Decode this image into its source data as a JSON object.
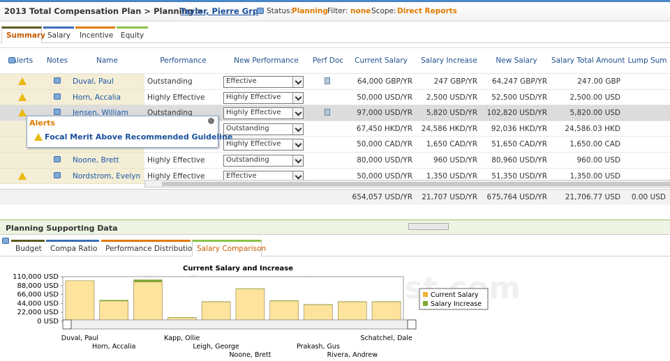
{
  "header": {
    "breadcrumb": "2013 Total Compensation Plan > Planning >",
    "employee": "Taylor, Pierre Grp",
    "status_label": "Status:",
    "status": "Planning",
    "filter_label": "Filter:",
    "filter": "none",
    "scope_label": "Scope:",
    "scope": "Direct Reports"
  },
  "tabs": [
    "Summary",
    "Salary",
    "Incentive",
    "Equity"
  ],
  "active_tab": 0,
  "table": {
    "columns": [
      "Alerts",
      "Notes",
      "Name",
      "Performance",
      "New Performance",
      "Perf Doc",
      "Current Salary",
      "Salary Increase",
      "New Salary",
      "Salary Total Amount",
      "Lump Sum"
    ],
    "rows": [
      {
        "alert": true,
        "note": true,
        "doc": true,
        "name": "Duval, Paul",
        "performance": "Outstanding",
        "new_performance": "Effective",
        "current_salary": "64,000  GBP/YR",
        "salary_increase": "247  GBP/YR",
        "new_salary": "64,247  GBP/YR",
        "total": "247.00  GBP"
      },
      {
        "alert": true,
        "note": true,
        "doc": false,
        "name": "Horn, Accalia",
        "performance": "Highly Effective",
        "new_performance": "Highly Effective",
        "current_salary": "50,000  USD/YR",
        "salary_increase": "2,500  USD/YR",
        "new_salary": "52,500  USD/YR",
        "total": "2,500.00  USD"
      },
      {
        "alert": true,
        "note": true,
        "doc": true,
        "selected": true,
        "name": "Jensen, William",
        "performance": "Outstanding",
        "new_performance": "Highly Effective",
        "current_salary": "97,000  USD/YR",
        "salary_increase": "5,820  USD/YR",
        "new_salary": "102,820  USD/YR",
        "total": "5,820.00  USD"
      },
      {
        "alert": false,
        "note": false,
        "doc": false,
        "new_performance": "Outstanding",
        "current_salary": "67,450  HKD/YR",
        "salary_increase": "24,586  HKD/YR",
        "new_salary": "92,036  HKD/YR",
        "total": "24,586.03  HKD"
      },
      {
        "alert": false,
        "note": false,
        "doc": false,
        "new_performance": "Highly Effective",
        "current_salary": "50,000  CAD/YR",
        "salary_increase": "1,650  CAD/YR",
        "new_salary": "51,650  CAD/YR",
        "total": "1,650.00  CAD"
      },
      {
        "alert": false,
        "note": true,
        "doc": false,
        "name": "Noone, Brett",
        "performance": "Highly Effective",
        "new_performance": "Outstanding",
        "current_salary": "80,000  USD/YR",
        "salary_increase": "960  USD/YR",
        "new_salary": "80,960  USD/YR",
        "total": "960.00  USD"
      },
      {
        "alert": true,
        "note": true,
        "doc": false,
        "name": "Nordstrom, Evelyn",
        "performance": "Highly Effective",
        "new_performance": "Effective",
        "current_salary": "50,000  USD/YR",
        "salary_increase": "1,350  USD/YR",
        "new_salary": "51,350  USD/YR",
        "total": "1,350.00  USD"
      }
    ],
    "totals": {
      "current_salary": "654,057  USD/YR",
      "salary_increase": "21,707  USD/YR",
      "new_salary": "675,764  USD/YR",
      "total": "21,706.77  USD",
      "lump_sum": "0.00  USD"
    }
  },
  "popup": {
    "title": "Alerts",
    "message": "Focal Merit Above Recommended Guideline"
  },
  "support": {
    "title": "Planning Supporting Data",
    "tabs": [
      "Budget",
      "Compa Ratio",
      "Performance Distribution",
      "Salary Comparison"
    ],
    "active_tab": 3
  },
  "watermark": "SoftwareSuggest.com",
  "chart_data": {
    "type": "bar",
    "stacked": true,
    "title": "Current Salary and Increase",
    "categories": [
      "Duval, Paul",
      "Horn, Accalia",
      null,
      "Kapp, Ollie",
      "Leigh, George",
      "Noone, Brett",
      null,
      "Prakash, Gus",
      "Rivera, Andrew",
      "Schatchel, Dale"
    ],
    "series": [
      {
        "name": "Current Salary",
        "color": "#fde39b",
        "legend_color": "#f2b233",
        "values": [
          100000,
          50000,
          97000,
          9000,
          48000,
          80000,
          50000,
          41000,
          48000,
          48000
        ]
      },
      {
        "name": "Salary Increase",
        "color": "#7ea733",
        "values": [
          400,
          2500,
          5820,
          1000,
          1000,
          960,
          1350,
          1000,
          1000,
          1000
        ]
      }
    ],
    "ylim": [
      0,
      110000
    ],
    "yticks": [
      {
        "value": 0,
        "label": "0 USD"
      },
      {
        "value": 22000,
        "label": "22,000 USD"
      },
      {
        "value": 44000,
        "label": "44,000 USD"
      },
      {
        "value": 66000,
        "label": "66,000 USD"
      },
      {
        "value": 88000,
        "label": "88,000 USD"
      },
      {
        "value": 110000,
        "label": "110,000 USD"
      }
    ],
    "grid": false,
    "legend": "right"
  }
}
